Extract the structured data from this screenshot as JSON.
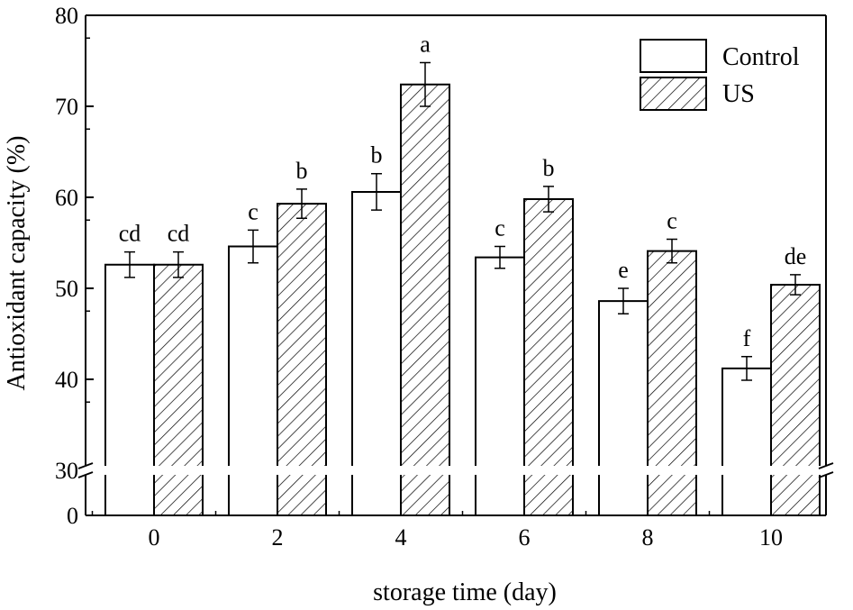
{
  "chart_data": {
    "type": "bar",
    "xlabel": "storage time (day)",
    "ylabel": "Antioxidant capacity (%)",
    "categories": [
      "0",
      "2",
      "4",
      "6",
      "8",
      "10"
    ],
    "y_axis_break": [
      0,
      30
    ],
    "y_upper_range": [
      30,
      80
    ],
    "y_upper_ticks": [
      "30",
      "40",
      "50",
      "60",
      "70",
      "80"
    ],
    "y_lower_ticks": [
      "0"
    ],
    "legend_position": "top-right",
    "grid": false,
    "series": [
      {
        "name": "Control",
        "pattern": "none",
        "color": "#ffffff",
        "values": [
          52.6,
          54.6,
          60.6,
          53.4,
          48.6,
          41.2
        ],
        "errors": [
          1.4,
          1.8,
          2.0,
          1.2,
          1.4,
          1.3
        ],
        "labels": [
          "cd",
          "c",
          "b",
          "c",
          "e",
          "f"
        ]
      },
      {
        "name": "US",
        "pattern": "diagonal-hatch",
        "color": "#ffffff",
        "values": [
          52.6,
          59.3,
          72.4,
          59.8,
          54.1,
          50.4
        ],
        "errors": [
          1.4,
          1.6,
          2.4,
          1.4,
          1.3,
          1.1
        ],
        "labels": [
          "cd",
          "b",
          "a",
          "b",
          "c",
          "de"
        ]
      }
    ]
  }
}
